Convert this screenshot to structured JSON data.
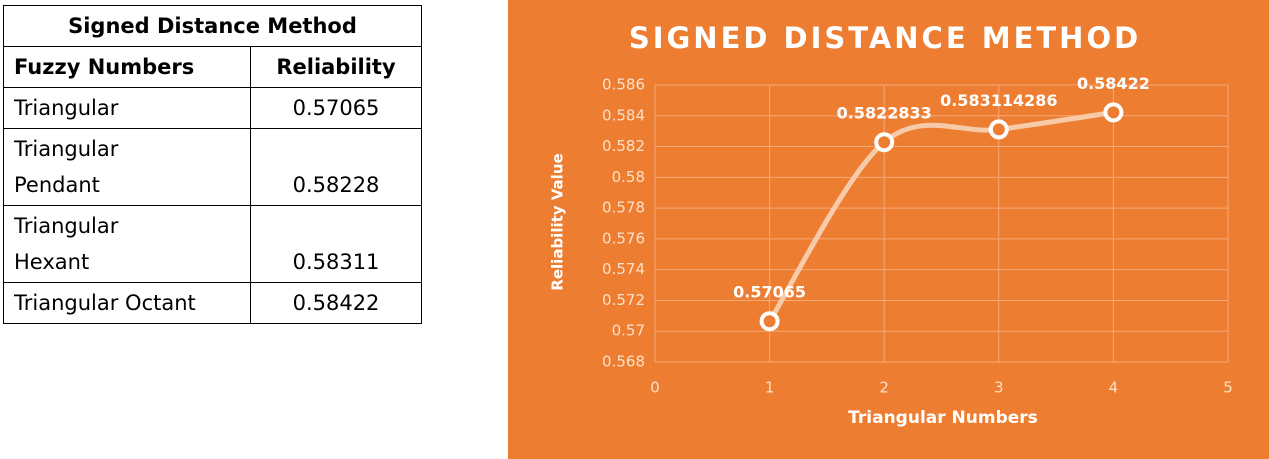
{
  "table": {
    "title": "Signed Distance Method",
    "header": [
      "Fuzzy Numbers",
      "Reliability"
    ],
    "rows": [
      [
        "Triangular",
        "0.57065"
      ],
      [
        "Triangular\nPendant",
        "0.58228"
      ],
      [
        "Triangular\nHexant",
        "0.58311"
      ],
      [
        "Triangular Octant",
        "0.58422"
      ]
    ]
  },
  "chart_data": {
    "type": "line",
    "title": "SIGNED DISTANCE METHOD",
    "x_label": "Triangular Numbers",
    "y_label": "Reliability Value",
    "x": [
      1,
      2,
      3,
      4
    ],
    "series": [
      {
        "name": "Reliability",
        "color": "#f8cba8",
        "values": [
          0.57065,
          0.5822833,
          0.583114286,
          0.58422
        ]
      }
    ],
    "xlim": [
      0,
      5
    ],
    "xticks": [
      0,
      1,
      2,
      3,
      4,
      5
    ],
    "ylim": [
      0.568,
      0.586
    ],
    "yticks": [
      0.568,
      0.57,
      0.572,
      0.574,
      0.576,
      0.578,
      0.58,
      0.582,
      0.584,
      0.586
    ],
    "grid": true,
    "smooth": true,
    "background": "#ed7d31"
  }
}
